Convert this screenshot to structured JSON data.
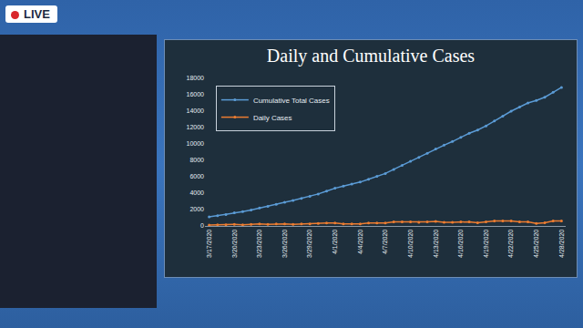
{
  "badge": "LIVE",
  "chart_data": {
    "type": "line",
    "title": "Daily and Cumulative Cases",
    "categories": [
      "3/17/2020",
      null,
      null,
      "3/20/2020",
      null,
      null,
      "3/23/2020",
      null,
      null,
      "3/26/2020",
      null,
      null,
      "3/29/2020",
      null,
      null,
      "4/1/2020",
      null,
      null,
      "4/4/2020",
      null,
      null,
      "4/7/2020",
      null,
      null,
      "4/10/2020",
      null,
      null,
      "4/13/2020",
      null,
      null,
      "4/16/2020",
      null,
      null,
      "4/19/2020",
      null,
      null,
      "4/22/2020",
      null,
      null,
      "4/25/2020",
      null,
      null,
      "4/28/2020"
    ],
    "series": [
      {
        "name": "Cumulative Total Cases",
        "color": "#5b9bd5",
        "marker": "circle",
        "values": [
          1100,
          1250,
          1400,
          1600,
          1750,
          1950,
          2200,
          2400,
          2650,
          2900,
          3100,
          3350,
          3600,
          3900,
          4250,
          4600,
          4850,
          5100,
          5350,
          5700,
          6050,
          6400,
          6900,
          7400,
          7900,
          8350,
          8850,
          9400,
          9850,
          10300,
          10800,
          11300,
          11700,
          12200,
          12800,
          13400,
          14000,
          14500,
          15000,
          15300,
          15700,
          16300,
          16900
        ]
      },
      {
        "name": "Daily Cases",
        "color": "#ed7d31",
        "marker": "circle",
        "values": [
          100,
          150,
          150,
          200,
          150,
          200,
          250,
          200,
          250,
          250,
          200,
          250,
          250,
          300,
          350,
          350,
          250,
          250,
          250,
          350,
          350,
          350,
          500,
          500,
          500,
          450,
          500,
          550,
          450,
          450,
          500,
          500,
          400,
          500,
          600,
          600,
          600,
          500,
          500,
          300,
          400,
          600,
          600
        ]
      }
    ],
    "ylim": [
      0,
      18000
    ],
    "yticks": [
      0,
      2000,
      4000,
      6000,
      8000,
      10000,
      12000,
      14000,
      16000,
      18000
    ],
    "grid": false,
    "legend": "upper left"
  }
}
